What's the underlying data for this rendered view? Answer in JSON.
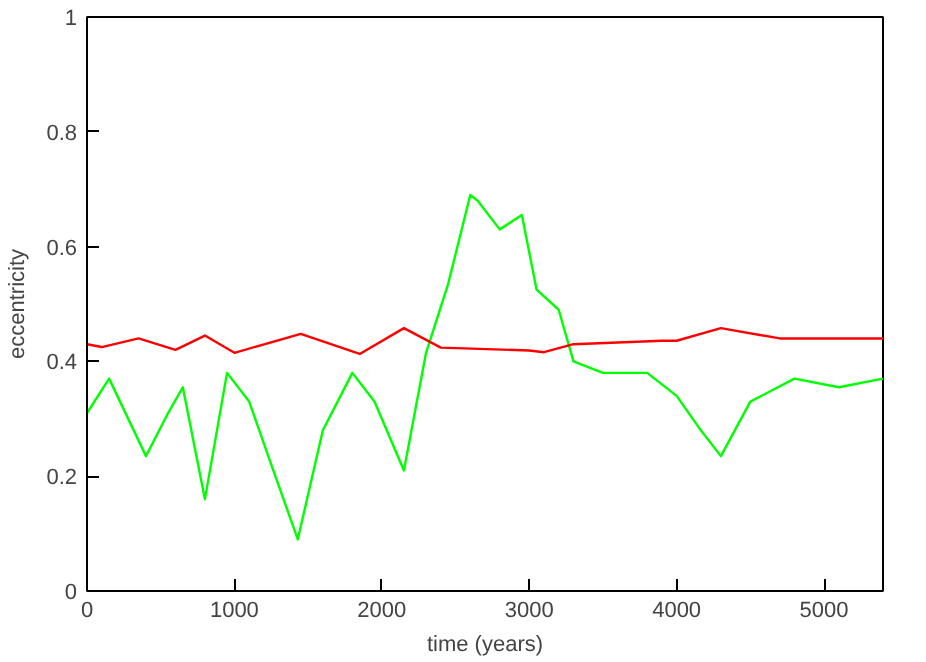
{
  "chart_data": {
    "type": "line",
    "xlabel": "time (years)",
    "ylabel": "eccentricity",
    "xlim": [
      0,
      5400
    ],
    "ylim": [
      0,
      1
    ],
    "xticks": [
      0,
      1000,
      2000,
      3000,
      4000,
      5000
    ],
    "yticks": [
      0,
      0.2,
      0.4,
      0.6,
      0.8,
      1
    ],
    "grid": false,
    "line_style": "solid",
    "series": [
      {
        "color": "#00ff00",
        "x": [
          0,
          150,
          400,
          550,
          650,
          800,
          950,
          1100,
          1250,
          1430,
          1600,
          1800,
          1950,
          2150,
          2300,
          2450,
          2600,
          2650,
          2800,
          2950,
          3050,
          3200,
          3300,
          3500,
          3800,
          4000,
          4150,
          4300,
          4500,
          4800,
          5100,
          5400
        ],
        "values": [
          0.31,
          0.37,
          0.235,
          0.31,
          0.355,
          0.16,
          0.38,
          0.33,
          0.22,
          0.09,
          0.28,
          0.38,
          0.33,
          0.21,
          0.415,
          0.535,
          0.69,
          0.68,
          0.63,
          0.655,
          0.525,
          0.49,
          0.4,
          0.38,
          0.38,
          0.34,
          0.285,
          0.235,
          0.33,
          0.37,
          0.355,
          0.37
        ]
      },
      {
        "color": "#ff0000",
        "x": [
          0,
          100,
          350,
          600,
          800,
          1000,
          1450,
          1850,
          2150,
          2400,
          3000,
          3100,
          3300,
          3900,
          4000,
          4300,
          4700,
          5400
        ],
        "values": [
          0.43,
          0.425,
          0.44,
          0.42,
          0.445,
          0.415,
          0.448,
          0.413,
          0.458,
          0.424,
          0.419,
          0.416,
          0.43,
          0.436,
          0.436,
          0.458,
          0.44,
          0.44
        ]
      }
    ]
  }
}
